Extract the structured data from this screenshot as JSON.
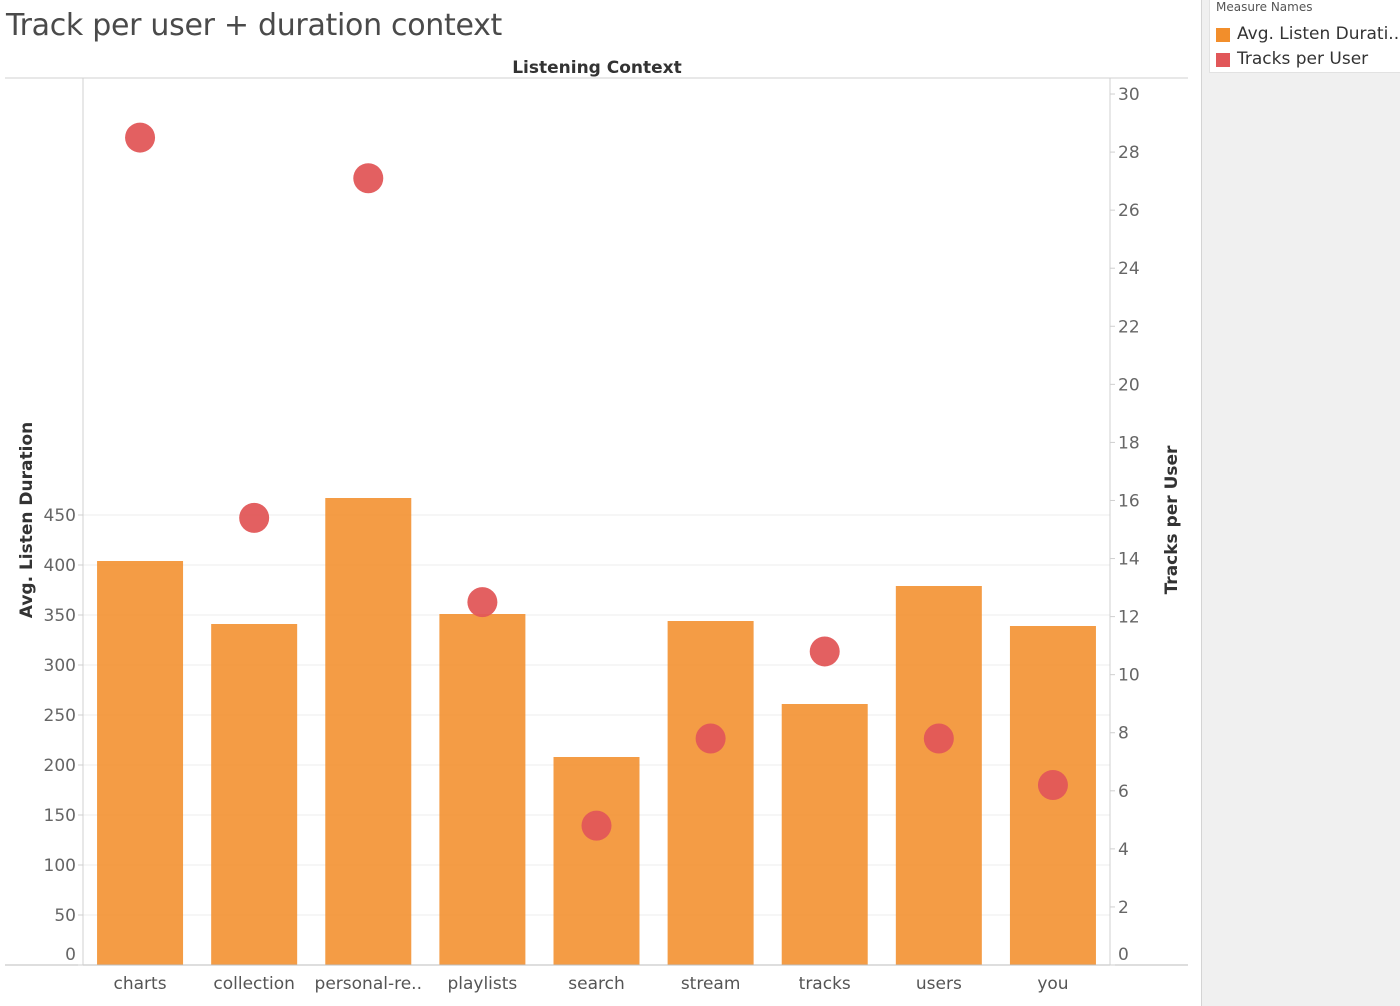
{
  "title": "Track per user + duration context",
  "legend": {
    "title": "Measure Names",
    "items": [
      {
        "label": "Avg. Listen Durati..",
        "color": "#f28e2b"
      },
      {
        "label": "Tracks per User",
        "color": "#e15759"
      }
    ]
  },
  "chart_data": {
    "type": "bar",
    "title": "",
    "column_header": "Listening Context",
    "categories": [
      "charts",
      "collection",
      "personal-re..",
      "playlists",
      "search",
      "stream",
      "tracks",
      "users",
      "you"
    ],
    "series": [
      {
        "name": "Avg. Listen Duration",
        "axis": "left",
        "mark": "bar",
        "color": "#f28e2b",
        "values": [
          404,
          341,
          467,
          351,
          208,
          344,
          261,
          379,
          339
        ]
      },
      {
        "name": "Tracks per User",
        "axis": "right",
        "mark": "circle",
        "color": "#e15759",
        "values": [
          28.5,
          15.4,
          27.1,
          12.5,
          4.8,
          7.8,
          10.8,
          7.8,
          6.2
        ]
      }
    ],
    "y_left": {
      "label": "Avg. Listen Duration",
      "range": [
        0,
        490
      ],
      "ticks": [
        0,
        50,
        100,
        150,
        200,
        250,
        300,
        350,
        400,
        450
      ]
    },
    "y_right": {
      "label": "Tracks per User",
      "range": [
        0,
        30.5
      ],
      "ticks": [
        0,
        2,
        4,
        6,
        8,
        10,
        12,
        14,
        16,
        18,
        20,
        22,
        24,
        26,
        28,
        30
      ]
    },
    "grid": true,
    "legend_position": "right"
  }
}
